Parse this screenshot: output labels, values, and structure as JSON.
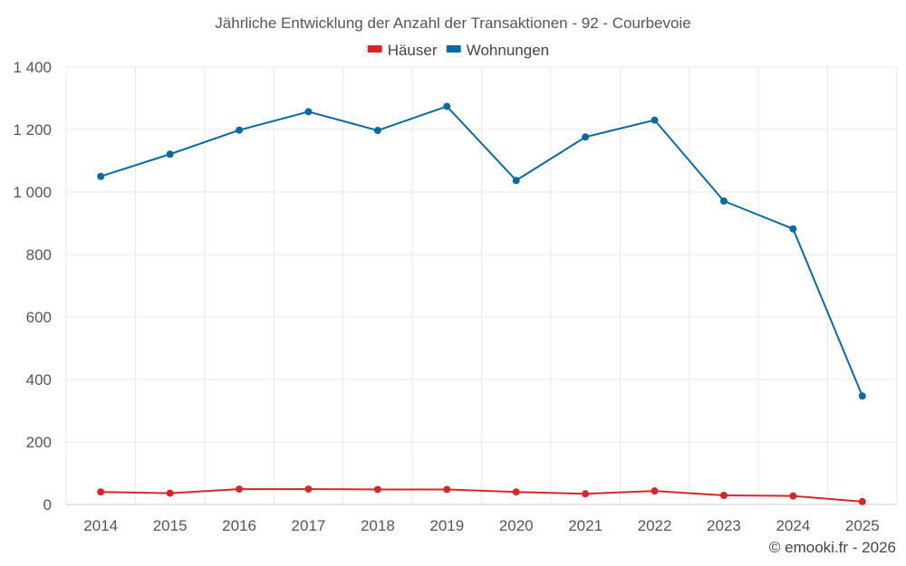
{
  "chart_data": {
    "type": "line",
    "title": "Jährliche Entwicklung der Anzahl der Transaktionen - 92 - Courbevoie",
    "categories": [
      "2014",
      "2015",
      "2016",
      "2017",
      "2018",
      "2019",
      "2020",
      "2021",
      "2022",
      "2023",
      "2024",
      "2025"
    ],
    "series": [
      {
        "name": "Häuser",
        "color": "#d62728",
        "values": [
          40,
          36,
          49,
          49,
          48,
          48,
          40,
          34,
          43,
          29,
          27,
          9
        ]
      },
      {
        "name": "Wohnungen",
        "color": "#0a6aa1",
        "values": [
          1050,
          1121,
          1198,
          1257,
          1197,
          1274,
          1037,
          1176,
          1230,
          971,
          882,
          347
        ]
      }
    ],
    "ylim": [
      0,
      1400
    ],
    "yticks": [
      0,
      200,
      400,
      600,
      800,
      1000,
      1200,
      1400
    ],
    "ytick_labels": [
      "0",
      "200",
      "400",
      "600",
      "800",
      "1 000",
      "1 200",
      "1 400"
    ],
    "xlabel": "",
    "ylabel": "",
    "legend_position": "top-center",
    "grid": true
  },
  "credit": "© emooki.fr - 2026"
}
